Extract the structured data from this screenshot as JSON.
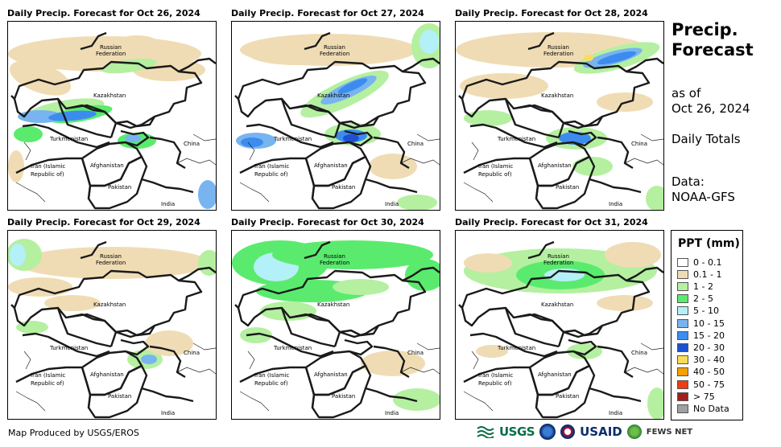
{
  "panels": [
    {
      "title": "Daily Precip. Forecast for Oct 26, 2024"
    },
    {
      "title": "Daily Precip. Forecast for Oct 27, 2024"
    },
    {
      "title": "Daily Precip. Forecast for Oct 28, 2024"
    },
    {
      "title": "Daily Precip. Forecast for Oct 29, 2024"
    },
    {
      "title": "Daily Precip. Forecast for Oct 30, 2024"
    },
    {
      "title": "Daily Precip. Forecast for Oct 31, 2024"
    }
  ],
  "map_labels": {
    "russia_line1": "Russian",
    "russia_line2": "Federation",
    "kazakhstan": "Kazakhstan",
    "turkmenistan": "Turkmenistan",
    "china": "China",
    "iran_line1": "Iran  (Islamic",
    "iran_line2": "Republic of)",
    "afghanistan": "Afghanistan",
    "pakistan": "Pakistan",
    "india": "India"
  },
  "side": {
    "title_line1": "Precip.",
    "title_line2": "Forecast",
    "asof_line1": "as of",
    "asof_line2": "Oct 26, 2024",
    "totals": "Daily Totals",
    "data_line1": "Data:",
    "data_line2": "NOAA-GFS"
  },
  "legend": {
    "title": "PPT (mm)",
    "items": [
      {
        "label": "0 - 0.1",
        "color": "#ffffff"
      },
      {
        "label": "0.1 - 1",
        "color": "#f0dcb4"
      },
      {
        "label": "1 - 2",
        "color": "#b4f0a0"
      },
      {
        "label": "2 - 5",
        "color": "#5aeb6e"
      },
      {
        "label": "5 - 10",
        "color": "#b4f0f8"
      },
      {
        "label": "10 - 15",
        "color": "#78b4f0"
      },
      {
        "label": "15 - 20",
        "color": "#3c8cf0"
      },
      {
        "label": "20 - 30",
        "color": "#1e50d2"
      },
      {
        "label": "30 - 40",
        "color": "#fadc5a"
      },
      {
        "label": "40 - 50",
        "color": "#f5a000"
      },
      {
        "label": "50 - 75",
        "color": "#f03c14"
      },
      {
        "label": "> 75",
        "color": "#a01e1e"
      },
      {
        "label": "No Data",
        "color": "#a0a0a0"
      }
    ]
  },
  "footer": {
    "credit": "Map Produced by USGS/EROS",
    "usgs": "USGS",
    "usaid": "USAID",
    "fews": "FEWS NET"
  },
  "colors": {
    "tan": "#f0dcb4",
    "lightgreen": "#b4f0a0",
    "green": "#5aeb6e",
    "cyan": "#b4f0f8",
    "lightblue": "#78b4f0",
    "blue": "#3c8cf0",
    "darkblue": "#1e50d2",
    "yellow": "#fadc5a"
  }
}
